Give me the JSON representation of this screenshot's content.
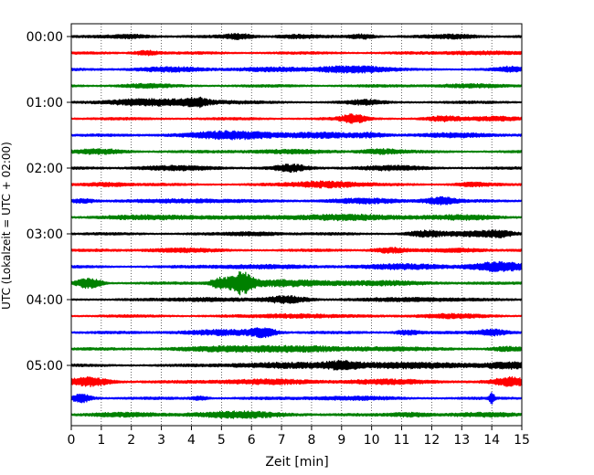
{
  "chart_data": {
    "type": "line",
    "xlabel": "Zeit  [min]",
    "ylabel": "UTC (Lokalzeit = UTC + 02:00)",
    "xlim": [
      0,
      15
    ],
    "x_ticks": [
      "0",
      "1",
      "2",
      "3",
      "4",
      "5",
      "6",
      "7",
      "8",
      "9",
      "10",
      "11",
      "12",
      "13",
      "14",
      "15"
    ],
    "y_ticks": [
      "00:00",
      "01:00",
      "02:00",
      "03:00",
      "04:00",
      "05:00"
    ],
    "trace_interval_minutes": 15,
    "grid": "vertical dotted",
    "colors": [
      "#000000",
      "#ff0000",
      "#0000ff",
      "#008000"
    ],
    "traces": [
      {
        "start": "00:00",
        "color": "#000000",
        "bursts": [
          [
            5.6,
            0.35,
            2.6
          ],
          [
            9.7,
            0.3,
            2.2
          ],
          [
            2.0,
            0.5,
            1.6
          ],
          [
            7.5,
            0.5,
            1.4
          ],
          [
            12.8,
            0.6,
            1.6
          ]
        ]
      },
      {
        "start": "00:15",
        "color": "#ff0000",
        "bursts": [
          [
            2.5,
            0.3,
            2.2
          ],
          [
            13.5,
            0.8,
            1.4
          ]
        ]
      },
      {
        "start": "00:30",
        "color": "#0000ff",
        "bursts": [
          [
            9.0,
            0.6,
            3.0
          ],
          [
            3.2,
            0.8,
            1.8
          ],
          [
            10.0,
            0.5,
            1.8
          ],
          [
            14.6,
            0.3,
            2.2
          ],
          [
            6.5,
            1.0,
            1.4
          ]
        ]
      },
      {
        "start": "00:45",
        "color": "#008000",
        "bursts": [
          [
            2.5,
            0.6,
            1.4
          ],
          [
            13.0,
            0.8,
            1.2
          ]
        ]
      },
      {
        "start": "01:00",
        "color": "#000000",
        "bursts": [
          [
            3.0,
            1.4,
            3.0
          ],
          [
            4.2,
            0.25,
            3.4
          ],
          [
            9.8,
            0.4,
            2.0
          ]
        ]
      },
      {
        "start": "01:15",
        "color": "#ff0000",
        "bursts": [
          [
            9.4,
            0.3,
            4.2
          ],
          [
            12.4,
            0.4,
            2.0
          ],
          [
            14.2,
            0.6,
            2.0
          ]
        ]
      },
      {
        "start": "01:30",
        "color": "#0000ff",
        "bursts": [
          [
            5.5,
            1.2,
            3.8
          ],
          [
            8.5,
            0.8,
            2.0
          ],
          [
            10.0,
            0.4,
            2.0
          ],
          [
            13.0,
            0.8,
            1.8
          ]
        ]
      },
      {
        "start": "01:45",
        "color": "#008000",
        "bursts": [
          [
            1.0,
            0.6,
            2.0
          ],
          [
            10.3,
            0.5,
            2.4
          ],
          [
            7.0,
            1.0,
            1.4
          ]
        ]
      },
      {
        "start": "02:00",
        "color": "#000000",
        "bursts": [
          [
            7.3,
            0.4,
            3.2
          ],
          [
            3.5,
            1.0,
            1.6
          ],
          [
            10.5,
            0.8,
            1.8
          ]
        ]
      },
      {
        "start": "02:15",
        "color": "#ff0000",
        "bursts": [
          [
            8.5,
            0.8,
            3.2
          ],
          [
            1.2,
            0.5,
            1.8
          ],
          [
            13.3,
            0.4,
            1.6
          ]
        ]
      },
      {
        "start": "02:30",
        "color": "#0000ff",
        "bursts": [
          [
            12.3,
            0.4,
            3.6
          ],
          [
            0.4,
            0.3,
            2.0
          ],
          [
            4.0,
            1.0,
            1.6
          ],
          [
            9.8,
            1.0,
            1.8
          ]
        ]
      },
      {
        "start": "02:45",
        "color": "#008000",
        "bursts": [
          [
            9.0,
            2.0,
            2.2
          ],
          [
            3.0,
            1.2,
            1.8
          ],
          [
            13.2,
            0.8,
            1.6
          ]
        ]
      },
      {
        "start": "03:00",
        "color": "#000000",
        "bursts": [
          [
            14.2,
            0.4,
            3.6
          ],
          [
            11.8,
            0.4,
            2.8
          ],
          [
            6.2,
            0.6,
            1.6
          ],
          [
            13.2,
            0.5,
            2.0
          ]
        ]
      },
      {
        "start": "03:15",
        "color": "#ff0000",
        "bursts": [
          [
            10.6,
            0.4,
            2.6
          ],
          [
            3.5,
            0.8,
            1.5
          ],
          [
            13.0,
            0.6,
            1.6
          ]
        ]
      },
      {
        "start": "03:30",
        "color": "#0000ff",
        "bursts": [
          [
            14.2,
            0.7,
            4.4
          ],
          [
            11.0,
            1.2,
            2.0
          ],
          [
            6.0,
            1.0,
            1.6
          ]
        ]
      },
      {
        "start": "03:45",
        "color": "#008000",
        "bursts": [
          [
            5.7,
            0.25,
            11.0
          ],
          [
            5.0,
            0.25,
            5.5
          ],
          [
            0.6,
            0.3,
            5.0
          ],
          [
            7.0,
            1.2,
            2.4
          ],
          [
            10.0,
            1.5,
            1.6
          ]
        ]
      },
      {
        "start": "04:00",
        "color": "#000000",
        "bursts": [
          [
            7.2,
            0.5,
            3.4
          ],
          [
            4.5,
            0.8,
            1.6
          ],
          [
            11.5,
            1.0,
            1.6
          ]
        ]
      },
      {
        "start": "04:15",
        "color": "#ff0000",
        "bursts": [
          [
            7.5,
            0.8,
            1.8
          ],
          [
            12.5,
            0.8,
            1.6
          ]
        ]
      },
      {
        "start": "04:30",
        "color": "#0000ff",
        "bursts": [
          [
            6.4,
            0.3,
            4.4
          ],
          [
            14.0,
            0.4,
            3.2
          ],
          [
            11.2,
            0.3,
            2.2
          ],
          [
            5.0,
            1.0,
            2.2
          ]
        ]
      },
      {
        "start": "04:45",
        "color": "#008000",
        "bursts": [
          [
            6.5,
            1.8,
            3.0
          ],
          [
            14.5,
            0.4,
            2.0
          ],
          [
            10.5,
            0.8,
            1.4
          ]
        ]
      },
      {
        "start": "05:00",
        "color": "#000000",
        "bursts": [
          [
            9.0,
            0.4,
            3.2
          ],
          [
            11.0,
            2.5,
            2.4
          ],
          [
            14.5,
            0.5,
            2.2
          ],
          [
            6.5,
            1.0,
            1.8
          ]
        ]
      },
      {
        "start": "05:15",
        "color": "#ff0000",
        "bursts": [
          [
            0.6,
            0.5,
            4.4
          ],
          [
            14.6,
            0.4,
            4.2
          ],
          [
            6.3,
            1.2,
            2.0
          ],
          [
            10.5,
            1.2,
            1.8
          ]
        ]
      },
      {
        "start": "05:30",
        "color": "#0000ff",
        "bursts": [
          [
            0.35,
            0.25,
            4.2
          ],
          [
            14.0,
            0.06,
            6.5
          ],
          [
            4.3,
            0.2,
            1.8
          ],
          [
            9.0,
            1.0,
            1.4
          ]
        ]
      },
      {
        "start": "05:45",
        "color": "#008000",
        "bursts": [
          [
            5.5,
            1.2,
            2.8
          ],
          [
            11.3,
            0.5,
            2.0
          ],
          [
            1.5,
            0.8,
            1.6
          ],
          [
            14.0,
            0.8,
            1.6
          ]
        ]
      }
    ]
  }
}
